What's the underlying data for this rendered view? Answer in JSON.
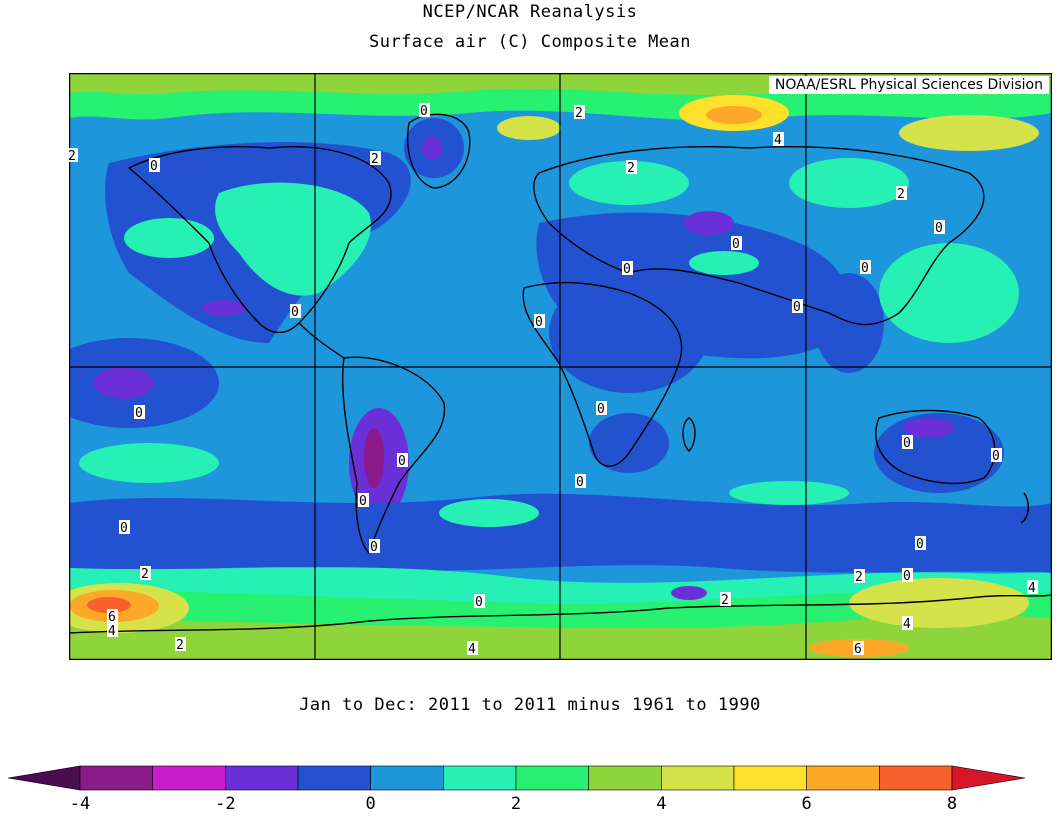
{
  "header": {
    "title": "NCEP/NCAR Reanalysis",
    "subtitle": "Surface air (C) Composite Mean"
  },
  "credit": "NOAA/ESRL Physical Sciences Division",
  "period": "Jan to Dec: 2011 to 2011 minus 1961 to 1990",
  "colorbar": {
    "tick_labels": [
      "-4",
      "-2",
      "0",
      "2",
      "4",
      "6",
      "8"
    ],
    "tick_values": [
      -4,
      -2,
      0,
      2,
      4,
      6,
      8
    ],
    "min": -4,
    "max": 8,
    "bins": [
      {
        "from": -4,
        "to": -3,
        "color": "#8b1a8b"
      },
      {
        "from": -3,
        "to": -2,
        "color": "#c81ecb"
      },
      {
        "from": -2,
        "to": -1,
        "color": "#6a2fd6"
      },
      {
        "from": -1,
        "to": 0,
        "color": "#2252d0"
      },
      {
        "from": 0,
        "to": 1,
        "color": "#1d96db"
      },
      {
        "from": 1,
        "to": 2,
        "color": "#27f0b4"
      },
      {
        "from": 2,
        "to": 3,
        "color": "#28f070"
      },
      {
        "from": 3,
        "to": 4,
        "color": "#8ed43a"
      },
      {
        "from": 4,
        "to": 5,
        "color": "#d6e24a"
      },
      {
        "from": 5,
        "to": 6,
        "color": "#fde12b"
      },
      {
        "from": 6,
        "to": 7,
        "color": "#fea82a"
      },
      {
        "from": 7,
        "to": 8,
        "color": "#f7622a"
      }
    ],
    "under_color": "#4b0d52",
    "over_color": "#d8152a"
  },
  "map": {
    "ocean_color": "#1d96db",
    "contour_labels": [
      "0",
      "2",
      "4",
      "6"
    ]
  }
}
